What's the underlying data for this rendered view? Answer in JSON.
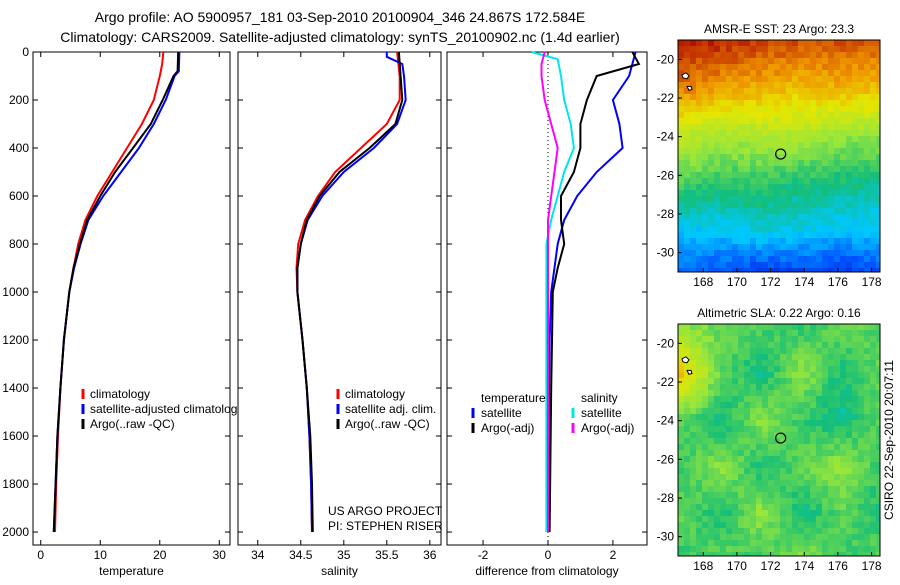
{
  "title_line1": "Argo profile: AO 5900957_181 03-Sep-2010 20100904_346 24.867S 172.584E",
  "title_line2": "Climatology: CARS2009. Satellite-adjusted climatology: synTS_20100902.nc (1.4d earlier)",
  "footer": "CSIRO 22-Sep-2010 20:07:11",
  "chart_data": [
    {
      "type": "line",
      "id": "temperature",
      "xlabel": "temperature",
      "ylabel": "",
      "xlim": [
        -1.3,
        31.8
      ],
      "ylim": [
        0,
        2054
      ],
      "y_reversed": true,
      "xticks": [
        0,
        10,
        20,
        30
      ],
      "yticks": [
        0,
        200,
        400,
        600,
        800,
        1000,
        1200,
        1400,
        1600,
        1800,
        2000
      ],
      "legend": [
        "climatology",
        "satellite-adjusted climatology",
        "Argo(..raw -QC)"
      ],
      "legend_position": "bottom-right",
      "series": [
        {
          "name": "climatology",
          "color": "#ff0000",
          "depth": [
            0,
            50,
            100,
            200,
            300,
            400,
            500,
            600,
            700,
            800,
            900,
            1000,
            1200,
            1400,
            1600,
            1800,
            2000
          ],
          "values": [
            20.6,
            20.4,
            20,
            19,
            17,
            14.5,
            12,
            9.5,
            7.5,
            6.3,
            5.5,
            4.8,
            3.9,
            3.3,
            2.9,
            2.6,
            2.4
          ]
        },
        {
          "name": "satellite-adjusted climatology",
          "color": "#0000ff",
          "depth": [
            0,
            80,
            100,
            200,
            300,
            400,
            500,
            600,
            700,
            800,
            900,
            1000,
            1200,
            1400,
            1600,
            1800,
            2000
          ],
          "values": [
            23.3,
            23.2,
            22.5,
            21,
            19,
            16.5,
            13.5,
            10.5,
            8,
            6.7,
            5.6,
            4.8,
            3.9,
            3.3,
            2.8,
            2.5,
            2.2
          ]
        },
        {
          "name": "Argo(..raw -QC)",
          "color": "#000000",
          "depth": [
            0,
            80,
            100,
            200,
            300,
            400,
            500,
            600,
            700,
            800,
            900,
            1000,
            1200,
            1400,
            1600,
            1800,
            2000
          ],
          "values": [
            23.1,
            23,
            22.3,
            20.5,
            18.5,
            15.5,
            12.5,
            10,
            7.8,
            6.6,
            5.5,
            4.8,
            3.9,
            3.3,
            2.8,
            2.5,
            2.2
          ]
        }
      ]
    },
    {
      "type": "line",
      "id": "salinity",
      "xlabel": "salinity",
      "xlim": [
        33.77,
        36.13
      ],
      "ylim": [
        0,
        2054
      ],
      "y_reversed": true,
      "xticks": [
        34,
        34.5,
        35,
        35.5,
        36
      ],
      "legend": [
        "climatology",
        "satellite adj. clim.",
        "Argo(..raw -QC)"
      ],
      "legend_position": "bottom-right",
      "annotation": [
        "US ARGO PROJECT",
        "PI: STEPHEN RISER"
      ],
      "series": [
        {
          "name": "climatology",
          "color": "#ff0000",
          "depth": [
            0,
            100,
            200,
            300,
            400,
            500,
            600,
            700,
            800,
            900,
            1000,
            1200,
            1400,
            1600,
            1800,
            2000
          ],
          "values": [
            35.62,
            35.65,
            35.65,
            35.5,
            35.2,
            34.9,
            34.7,
            34.55,
            34.47,
            34.45,
            34.46,
            34.52,
            34.57,
            34.6,
            34.62,
            34.63
          ]
        },
        {
          "name": "satellite adj. clim.",
          "color": "#0000ff",
          "depth": [
            0,
            20,
            50,
            100,
            200,
            300,
            400,
            500,
            600,
            700,
            800,
            900,
            1000,
            1200,
            1400,
            1600,
            1800,
            2000
          ],
          "values": [
            35.5,
            35.5,
            35.68,
            35.7,
            35.72,
            35.62,
            35.35,
            35.0,
            34.75,
            34.58,
            34.5,
            34.46,
            34.46,
            34.52,
            34.57,
            34.6,
            34.62,
            34.63
          ]
        },
        {
          "name": "Argo(..raw -QC)",
          "color": "#000000",
          "depth": [
            0,
            100,
            200,
            300,
            400,
            500,
            600,
            700,
            800,
            900,
            1000,
            1200,
            1400,
            1600,
            1800,
            2000
          ],
          "values": [
            35.64,
            35.66,
            35.68,
            35.6,
            35.3,
            34.95,
            34.72,
            34.57,
            34.5,
            34.46,
            34.46,
            34.52,
            34.57,
            34.61,
            34.63,
            34.64
          ]
        }
      ]
    },
    {
      "type": "line",
      "id": "difference",
      "xlabel": "difference from climatology",
      "xlim": [
        -3.11,
        3.05
      ],
      "ylim": [
        0,
        2054
      ],
      "y_reversed": true,
      "xticks": [
        -2,
        0,
        2
      ],
      "legend_headers": [
        "temperature",
        "salinity"
      ],
      "legend": [
        "satellite",
        "Argo(-adj)",
        "satellite",
        "Argo(-adj)"
      ],
      "series": [
        {
          "name": "temperature satellite",
          "color": "#0000ff",
          "depth": [
            0,
            100,
            200,
            300,
            400,
            500,
            600,
            700,
            800,
            1000,
            1200,
            1600,
            2000
          ],
          "values": [
            2.7,
            2.5,
            2.0,
            2.2,
            2.3,
            1.5,
            0.9,
            0.5,
            0.3,
            0.1,
            0.05,
            0.02,
            0
          ]
        },
        {
          "name": "temperature Argo(-adj)",
          "color": "#000000",
          "depth": [
            0,
            50,
            100,
            200,
            300,
            400,
            500,
            600,
            700,
            800,
            900,
            1000,
            1400,
            2000
          ],
          "values": [
            2.6,
            2.8,
            1.5,
            1.2,
            1.0,
            1.0,
            0.8,
            0.4,
            0.4,
            0.5,
            0.3,
            0.15,
            0.1,
            0.05
          ]
        },
        {
          "name": "salinity satellite",
          "color": "#00e5ee",
          "depth": [
            0,
            30,
            100,
            200,
            300,
            400,
            500,
            600,
            700,
            800,
            1200,
            2000
          ],
          "values": [
            -0.5,
            0.3,
            0.4,
            0.5,
            0.7,
            0.8,
            0.5,
            0.3,
            0.1,
            -0.05,
            -0.05,
            -0.05
          ]
        },
        {
          "name": "salinity Argo(-adj)",
          "color": "#ff00ff",
          "depth": [
            0,
            50,
            100,
            200,
            300,
            400,
            500,
            600,
            700,
            1000,
            2000
          ],
          "values": [
            -0.1,
            -0.2,
            -0.2,
            -0.1,
            0.1,
            0.3,
            0.2,
            0.1,
            0,
            0,
            0
          ]
        }
      ]
    },
    {
      "type": "heatmap",
      "id": "sst",
      "title": "AMSR-E SST: 23  Argo: 23.3",
      "xlim": [
        166.5,
        178.5
      ],
      "ylim": [
        -31,
        -19
      ],
      "xticks": [
        168,
        170,
        172,
        174,
        176,
        178
      ],
      "yticks": [
        -20,
        -22,
        -24,
        -26,
        -28,
        -30
      ],
      "marker": [
        172.6,
        -24.9
      ],
      "grid": [
        [
          0.95,
          0.95,
          0.92,
          0.9,
          0.9,
          0.88
        ],
        [
          0.85,
          0.8,
          0.78,
          0.75,
          0.78,
          0.75
        ],
        [
          0.62,
          0.58,
          0.6,
          0.6,
          0.55,
          0.55
        ],
        [
          0.48,
          0.45,
          0.45,
          0.42,
          0.42,
          0.4
        ],
        [
          0.3,
          0.3,
          0.35,
          0.32,
          0.3,
          0.3
        ],
        [
          0.18,
          0.15,
          0.1,
          0.12,
          0.1,
          0.15
        ]
      ]
    },
    {
      "type": "heatmap",
      "id": "sla",
      "title": "Altimetric SLA: 0.22  Argo: 0.16",
      "xlim": [
        166.5,
        178.5
      ],
      "ylim": [
        -31,
        -19
      ],
      "xticks": [
        168,
        170,
        172,
        174,
        176,
        178
      ],
      "yticks": [
        -20,
        -22,
        -24,
        -26,
        -28,
        -30
      ],
      "marker": [
        172.6,
        -24.9
      ],
      "grid": [
        [
          0.55,
          0.5,
          0.48,
          0.45,
          0.5,
          0.48
        ],
        [
          0.75,
          0.5,
          0.4,
          0.55,
          0.42,
          0.5
        ],
        [
          0.5,
          0.4,
          0.55,
          0.45,
          0.4,
          0.5
        ],
        [
          0.45,
          0.55,
          0.42,
          0.5,
          0.55,
          0.45
        ],
        [
          0.5,
          0.42,
          0.55,
          0.4,
          0.5,
          0.42
        ],
        [
          0.45,
          0.5,
          0.45,
          0.55,
          0.45,
          0.5
        ]
      ]
    }
  ]
}
